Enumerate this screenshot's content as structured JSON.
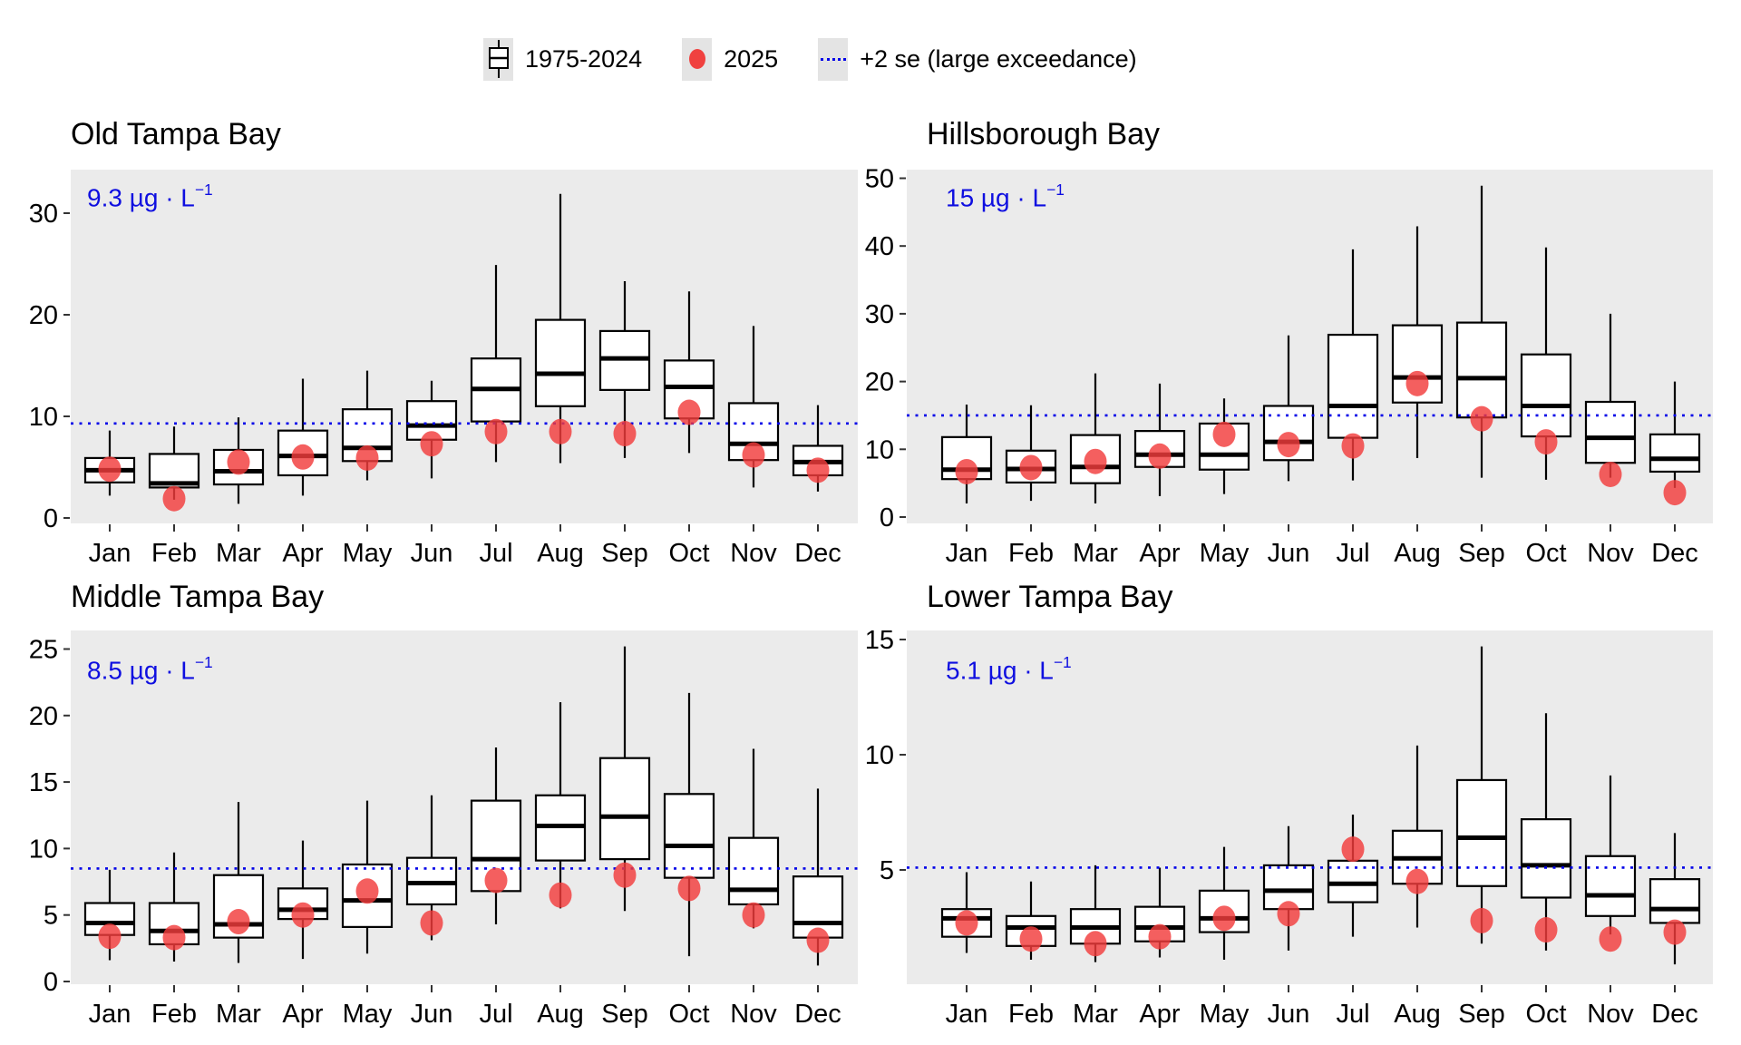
{
  "legend": {
    "items": [
      {
        "key": "boxplot-icon",
        "label": "1975-2024"
      },
      {
        "key": "dot-icon",
        "label": "2025"
      },
      {
        "key": "dotted-line-icon",
        "label": "+2 se (large exceedance)"
      }
    ]
  },
  "months": [
    "Jan",
    "Feb",
    "Mar",
    "Apr",
    "May",
    "Jun",
    "Jul",
    "Aug",
    "Sep",
    "Oct",
    "Nov",
    "Dec"
  ],
  "colors": {
    "panel_bg": "#ebebeb",
    "box_fill": "#ffffff",
    "box_stroke": "#000000",
    "dot_fill": "#f23c3c",
    "threshold_line": "#0202e8",
    "threshold_text": "#0f0fe0",
    "axis_tick": "#333333"
  },
  "chart_data": [
    {
      "type": "box",
      "title": "Old Tampa Bay",
      "threshold_value": 9.3,
      "threshold_label": "9.3 µg · L",
      "threshold_sup": "−1",
      "yticks": [
        0,
        10,
        20,
        30
      ],
      "ylim": [
        0,
        34
      ],
      "grid": false,
      "legend_series": [
        "1975-2024",
        "2025"
      ],
      "categories": [
        "Jan",
        "Feb",
        "Mar",
        "Apr",
        "May",
        "Jun",
        "Jul",
        "Aug",
        "Sep",
        "Oct",
        "Nov",
        "Dec"
      ],
      "boxes": [
        {
          "lo": 2.2,
          "q1": 3.5,
          "med": 4.7,
          "q3": 5.9,
          "hi": 8.6
        },
        {
          "lo": 1.8,
          "q1": 3.0,
          "med": 3.4,
          "q3": 6.3,
          "hi": 9.0
        },
        {
          "lo": 1.4,
          "q1": 3.3,
          "med": 4.6,
          "q3": 6.7,
          "hi": 9.9
        },
        {
          "lo": 2.2,
          "q1": 4.2,
          "med": 6.1,
          "q3": 8.6,
          "hi": 13.7
        },
        {
          "lo": 3.7,
          "q1": 5.6,
          "med": 6.9,
          "q3": 10.7,
          "hi": 14.5
        },
        {
          "lo": 3.9,
          "q1": 7.7,
          "med": 9.1,
          "q3": 11.5,
          "hi": 13.5
        },
        {
          "lo": 5.5,
          "q1": 9.5,
          "med": 12.7,
          "q3": 15.7,
          "hi": 24.9
        },
        {
          "lo": 5.4,
          "q1": 11.0,
          "med": 14.2,
          "q3": 19.5,
          "hi": 31.9
        },
        {
          "lo": 5.9,
          "q1": 12.6,
          "med": 15.7,
          "q3": 18.4,
          "hi": 23.3
        },
        {
          "lo": 6.4,
          "q1": 9.8,
          "med": 12.9,
          "q3": 15.5,
          "hi": 22.3
        },
        {
          "lo": 3.0,
          "q1": 5.7,
          "med": 7.3,
          "q3": 11.3,
          "hi": 18.9
        },
        {
          "lo": 2.6,
          "q1": 4.2,
          "med": 5.5,
          "q3": 7.1,
          "hi": 11.1
        }
      ],
      "dots_2025": [
        4.8,
        1.9,
        5.5,
        6.0,
        5.9,
        7.3,
        8.5,
        8.5,
        8.3,
        10.4,
        6.2,
        4.7
      ]
    },
    {
      "type": "box",
      "title": "Hillsborough Bay",
      "threshold_value": 15,
      "threshold_label": "15 µg · L",
      "threshold_sup": "−1",
      "yticks": [
        0,
        10,
        20,
        30,
        40,
        50
      ],
      "ylim": [
        0,
        51
      ],
      "grid": false,
      "legend_series": [
        "1975-2024",
        "2025"
      ],
      "categories": [
        "Jan",
        "Feb",
        "Mar",
        "Apr",
        "May",
        "Jun",
        "Jul",
        "Aug",
        "Sep",
        "Oct",
        "Nov",
        "Dec"
      ],
      "boxes": [
        {
          "lo": 2.0,
          "q1": 5.6,
          "med": 7.0,
          "q3": 11.8,
          "hi": 16.6
        },
        {
          "lo": 2.4,
          "q1": 5.1,
          "med": 7.1,
          "q3": 9.8,
          "hi": 16.5
        },
        {
          "lo": 2.0,
          "q1": 5.0,
          "med": 7.4,
          "q3": 12.1,
          "hi": 21.2
        },
        {
          "lo": 3.1,
          "q1": 7.4,
          "med": 9.2,
          "q3": 12.7,
          "hi": 19.7
        },
        {
          "lo": 3.4,
          "q1": 7.0,
          "med": 9.2,
          "q3": 13.8,
          "hi": 17.5
        },
        {
          "lo": 5.3,
          "q1": 8.4,
          "med": 11.1,
          "q3": 16.4,
          "hi": 26.8
        },
        {
          "lo": 5.4,
          "q1": 11.7,
          "med": 16.4,
          "q3": 26.9,
          "hi": 39.5
        },
        {
          "lo": 8.7,
          "q1": 16.9,
          "med": 20.6,
          "q3": 28.3,
          "hi": 42.9
        },
        {
          "lo": 5.8,
          "q1": 14.7,
          "med": 20.5,
          "q3": 28.7,
          "hi": 48.9
        },
        {
          "lo": 5.5,
          "q1": 11.9,
          "med": 16.4,
          "q3": 24.0,
          "hi": 39.8
        },
        {
          "lo": 5.8,
          "q1": 8.0,
          "med": 11.7,
          "q3": 17.0,
          "hi": 30.0
        },
        {
          "lo": 4.3,
          "q1": 6.7,
          "med": 8.6,
          "q3": 12.2,
          "hi": 20.0
        }
      ],
      "dots_2025": [
        6.7,
        7.3,
        8.2,
        9.0,
        12.2,
        10.7,
        10.5,
        19.7,
        14.5,
        11.1,
        6.3,
        3.6
      ]
    },
    {
      "type": "box",
      "title": "Middle Tampa Bay",
      "threshold_value": 8.5,
      "threshold_label": "8.5 µg · L",
      "threshold_sup": "−1",
      "yticks": [
        0,
        5,
        10,
        15,
        20,
        25
      ],
      "ylim": [
        0,
        26.5
      ],
      "grid": false,
      "legend_series": [
        "1975-2024",
        "2025"
      ],
      "categories": [
        "Jan",
        "Feb",
        "Mar",
        "Apr",
        "May",
        "Jun",
        "Jul",
        "Aug",
        "Sep",
        "Oct",
        "Nov",
        "Dec"
      ],
      "boxes": [
        {
          "lo": 1.6,
          "q1": 3.5,
          "med": 4.4,
          "q3": 5.9,
          "hi": 8.4
        },
        {
          "lo": 1.5,
          "q1": 2.8,
          "med": 3.8,
          "q3": 5.9,
          "hi": 9.7
        },
        {
          "lo": 1.4,
          "q1": 3.3,
          "med": 4.3,
          "q3": 8.0,
          "hi": 13.5
        },
        {
          "lo": 1.7,
          "q1": 4.7,
          "med": 5.4,
          "q3": 7.0,
          "hi": 10.6
        },
        {
          "lo": 2.1,
          "q1": 4.1,
          "med": 6.1,
          "q3": 8.8,
          "hi": 13.6
        },
        {
          "lo": 3.1,
          "q1": 5.8,
          "med": 7.4,
          "q3": 9.3,
          "hi": 14.0
        },
        {
          "lo": 4.3,
          "q1": 6.8,
          "med": 9.2,
          "q3": 13.6,
          "hi": 17.6
        },
        {
          "lo": 5.5,
          "q1": 9.1,
          "med": 11.7,
          "q3": 14.0,
          "hi": 21.0
        },
        {
          "lo": 5.3,
          "q1": 9.2,
          "med": 12.4,
          "q3": 16.8,
          "hi": 25.2
        },
        {
          "lo": 1.9,
          "q1": 7.8,
          "med": 10.2,
          "q3": 14.1,
          "hi": 21.7
        },
        {
          "lo": 4.0,
          "q1": 5.8,
          "med": 6.9,
          "q3": 10.8,
          "hi": 17.5
        },
        {
          "lo": 1.2,
          "q1": 3.3,
          "med": 4.4,
          "q3": 7.9,
          "hi": 14.5
        }
      ],
      "dots_2025": [
        3.4,
        3.3,
        4.5,
        5.0,
        6.8,
        4.4,
        7.6,
        6.5,
        8.0,
        7.0,
        5.0,
        3.1
      ]
    },
    {
      "type": "box",
      "title": "Lower Tampa Bay",
      "threshold_value": 5.1,
      "threshold_label": "5.1 µg · L",
      "threshold_sup": "−1",
      "yticks": [
        5,
        10,
        15
      ],
      "ylim": [
        0,
        15.4
      ],
      "grid": false,
      "legend_series": [
        "1975-2024",
        "2025"
      ],
      "categories": [
        "Jan",
        "Feb",
        "Mar",
        "Apr",
        "May",
        "Jun",
        "Jul",
        "Aug",
        "Sep",
        "Oct",
        "Nov",
        "Dec"
      ],
      "boxes": [
        {
          "lo": 1.4,
          "q1": 2.1,
          "med": 2.9,
          "q3": 3.3,
          "hi": 4.9
        },
        {
          "lo": 1.1,
          "q1": 1.7,
          "med": 2.5,
          "q3": 3.0,
          "hi": 4.5
        },
        {
          "lo": 1.0,
          "q1": 1.8,
          "med": 2.5,
          "q3": 3.3,
          "hi": 5.2
        },
        {
          "lo": 1.2,
          "q1": 1.9,
          "med": 2.5,
          "q3": 3.4,
          "hi": 5.1
        },
        {
          "lo": 1.1,
          "q1": 2.3,
          "med": 2.9,
          "q3": 4.1,
          "hi": 6.0
        },
        {
          "lo": 1.5,
          "q1": 3.3,
          "med": 4.1,
          "q3": 5.2,
          "hi": 6.9
        },
        {
          "lo": 2.1,
          "q1": 3.6,
          "med": 4.4,
          "q3": 5.4,
          "hi": 7.4
        },
        {
          "lo": 2.5,
          "q1": 4.4,
          "med": 5.5,
          "q3": 6.7,
          "hi": 10.4
        },
        {
          "lo": 1.8,
          "q1": 4.3,
          "med": 6.4,
          "q3": 8.9,
          "hi": 14.7
        },
        {
          "lo": 1.5,
          "q1": 3.8,
          "med": 5.2,
          "q3": 7.2,
          "hi": 11.8
        },
        {
          "lo": 2.2,
          "q1": 3.0,
          "med": 3.9,
          "q3": 5.6,
          "hi": 9.1
        },
        {
          "lo": 0.9,
          "q1": 2.7,
          "med": 3.3,
          "q3": 4.6,
          "hi": 6.6
        }
      ],
      "dots_2025": [
        2.7,
        2.0,
        1.8,
        2.1,
        2.9,
        3.1,
        5.9,
        4.5,
        2.8,
        2.4,
        2.0,
        2.3
      ]
    }
  ]
}
